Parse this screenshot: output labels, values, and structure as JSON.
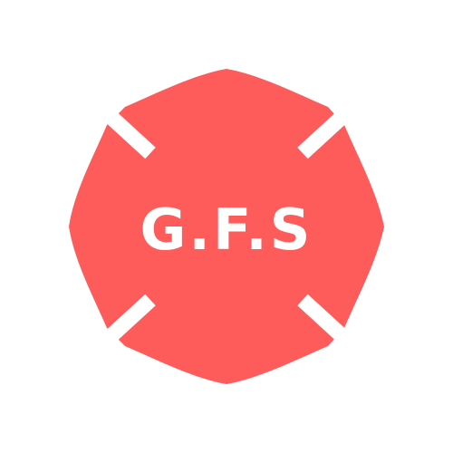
{
  "logo": {
    "text": "G.F.S",
    "emblem_icon": "maltese-cross-icon",
    "colors": {
      "background": "#ffffff",
      "emblem": "#fe5b5b",
      "text": "#ffffff",
      "divider": "#ffffff"
    }
  }
}
